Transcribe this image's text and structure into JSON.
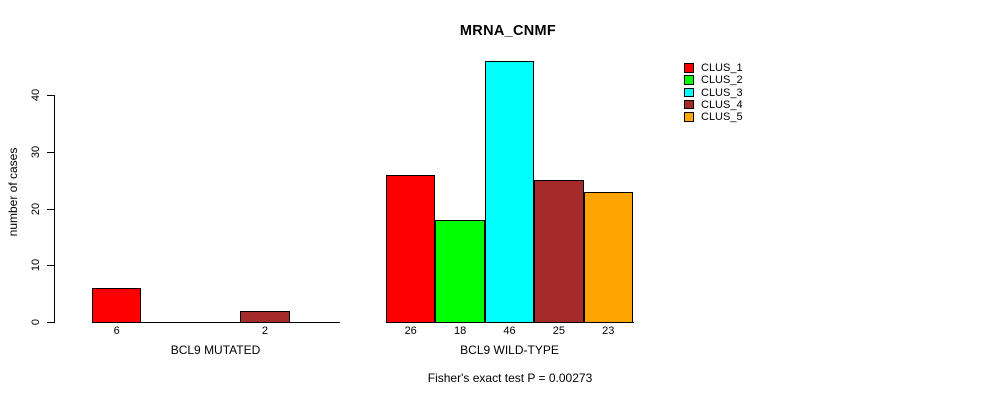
{
  "chart_data": {
    "type": "bar",
    "title": "MRNA_CNMF",
    "ylabel": "number of cases",
    "xlabel": "",
    "ylim": [
      0,
      46
    ],
    "yticks": [
      0,
      10,
      20,
      30,
      40
    ],
    "grid": false,
    "legend_position": "top-right",
    "categories": [
      "BCL9 MUTATED",
      "BCL9 WILD-TYPE"
    ],
    "series": [
      {
        "name": "CLUS_1",
        "color": "#ff0000",
        "values": [
          6,
          26
        ]
      },
      {
        "name": "CLUS_2",
        "color": "#00ff00",
        "values": [
          0,
          18
        ]
      },
      {
        "name": "CLUS_3",
        "color": "#00ffff",
        "values": [
          0,
          46
        ]
      },
      {
        "name": "CLUS_4",
        "color": "#a52a2a",
        "values": [
          2,
          25
        ]
      },
      {
        "name": "CLUS_5",
        "color": "#ffa500",
        "values": [
          0,
          23
        ]
      }
    ],
    "value_labels": [
      [
        "6",
        "",
        "",
        "2",
        ""
      ],
      [
        "26",
        "18",
        "46",
        "25",
        "23"
      ]
    ],
    "annotation": "Fisher's exact test P = 0.00273"
  }
}
